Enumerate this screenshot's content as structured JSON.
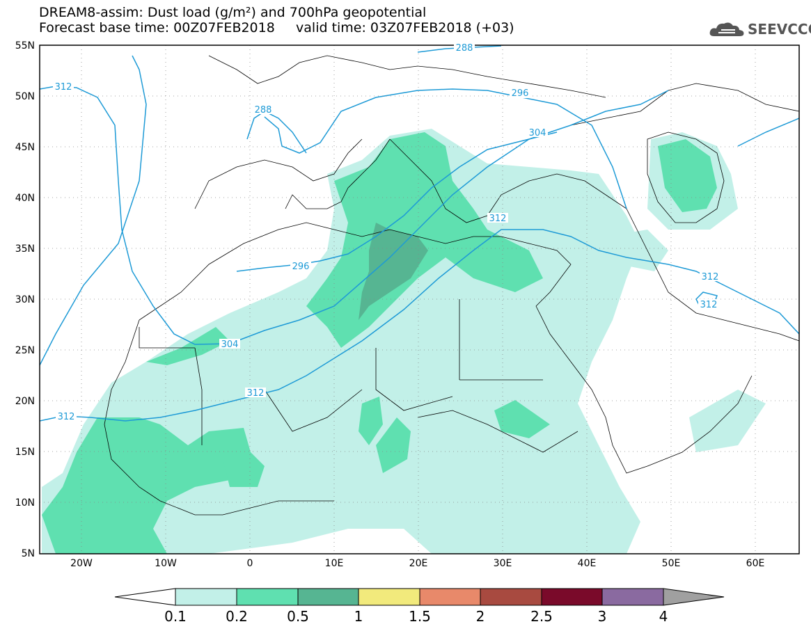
{
  "header": {
    "title_line1": "DREAM8-assim: Dust load (g/m²) and 700hPa geopotential",
    "title_line2": "Forecast base time: 00Z07FEB2018     valid time: 03Z07FEB2018 (+03)"
  },
  "logo": {
    "text": "SEEVCCC",
    "icon": "cloud-icon",
    "color": "#555555"
  },
  "map": {
    "lat_labels": [
      "55N",
      "50N",
      "45N",
      "40N",
      "35N",
      "30N",
      "25N",
      "20N",
      "15N",
      "10N",
      "5N"
    ],
    "lon_labels": [
      "20W",
      "10W",
      "0",
      "10E",
      "20E",
      "30E",
      "40E",
      "50E",
      "60E"
    ],
    "contour_color": "#1d9ad6",
    "contour_labels": [
      "288",
      "288",
      "296",
      "304",
      "312",
      "296",
      "304",
      "312",
      "312",
      "312",
      "312",
      "312"
    ]
  },
  "colorbar": {
    "levels": [
      "0.1",
      "0.2",
      "0.5",
      "1",
      "1.5",
      "2",
      "2.5",
      "3",
      "4"
    ],
    "colors": [
      "#ffffff",
      "#c2f0e8",
      "#5fe0b0",
      "#56b592",
      "#f2ea7c",
      "#e8896a",
      "#a84a40",
      "#7a0a2a",
      "#8a6aa0",
      "#a0a0a0"
    ]
  }
}
